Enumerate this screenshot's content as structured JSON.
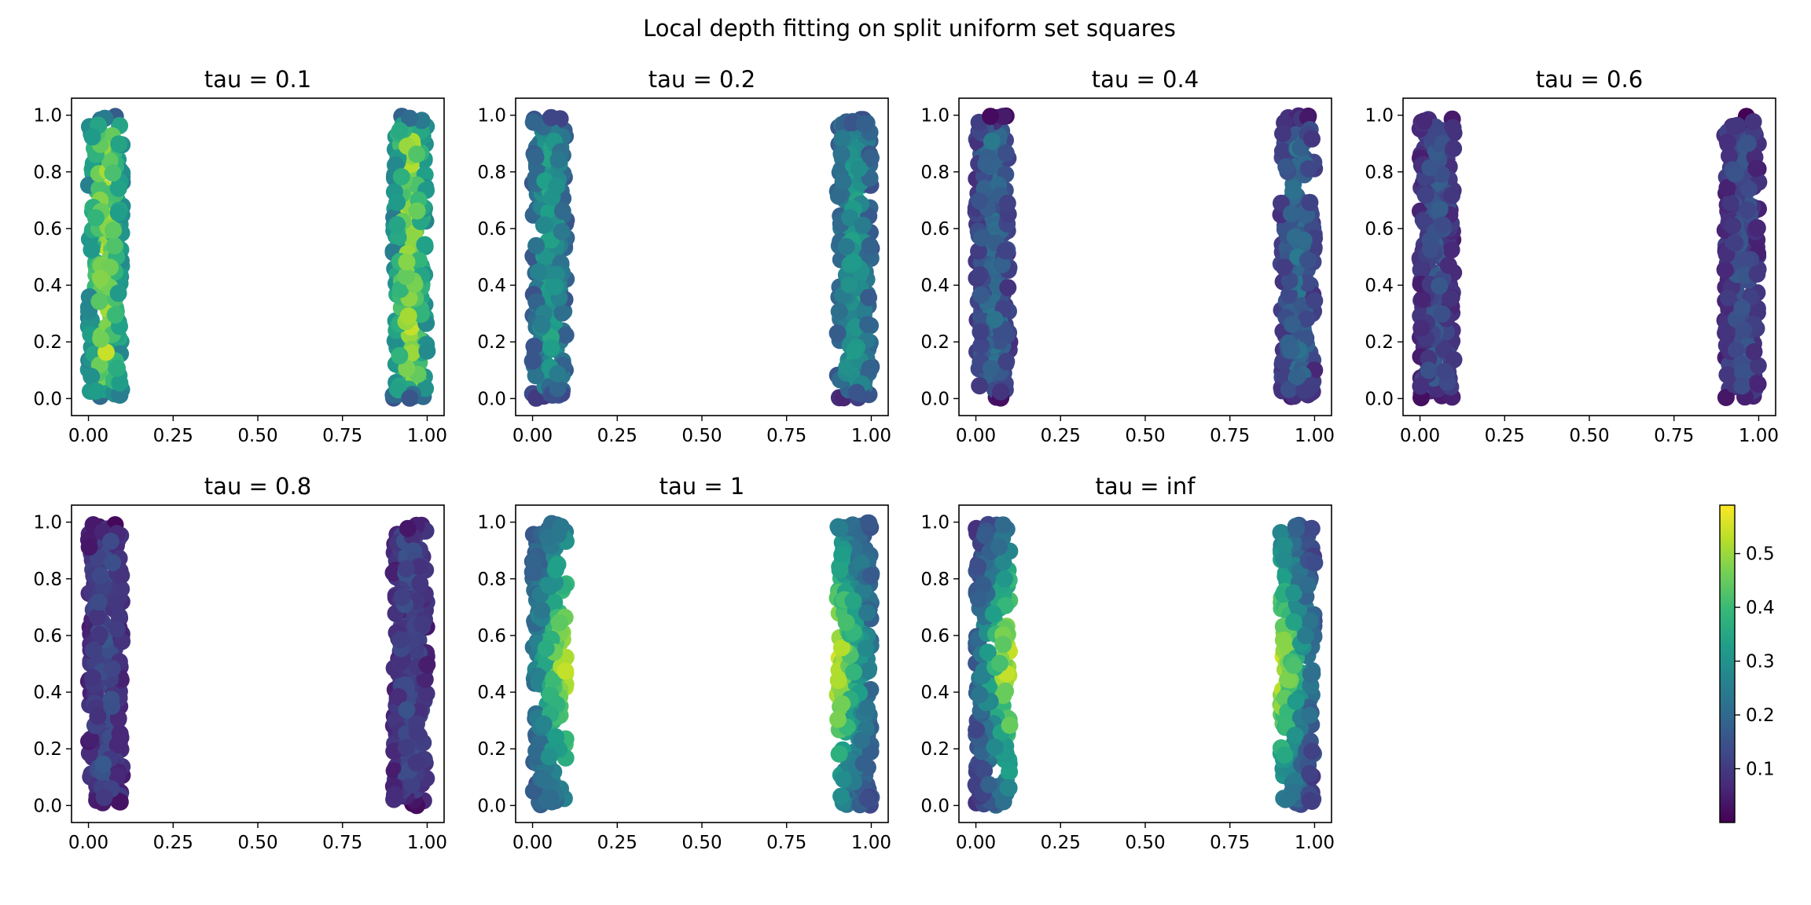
{
  "figure": {
    "title": "Local depth fitting on split uniform set squares"
  },
  "chart_data": [
    {
      "type": "scatter",
      "title": "tau = 0.1",
      "tau": 0.1,
      "xlim": [
        -0.05,
        1.05
      ],
      "ylim": [
        -0.06,
        1.06
      ],
      "xticks": [
        "0.00",
        "0.25",
        "0.50",
        "0.75",
        "1.00"
      ],
      "yticks": [
        "0.0",
        "0.2",
        "0.4",
        "0.6",
        "0.8",
        "1.0"
      ],
      "clusters": [
        {
          "x_range": [
            0.0,
            0.1
          ],
          "y_range": [
            0.0,
            1.0
          ]
        },
        {
          "x_range": [
            0.9,
            1.0
          ],
          "y_range": [
            0.0,
            1.0
          ]
        }
      ],
      "depth_profile": {
        "edge": 0.12,
        "center": 0.57,
        "falloff_width": 0.1
      }
    },
    {
      "type": "scatter",
      "title": "tau = 0.2",
      "tau": 0.2,
      "xlim": [
        -0.05,
        1.05
      ],
      "ylim": [
        -0.06,
        1.06
      ],
      "xticks": [
        "0.00",
        "0.25",
        "0.50",
        "0.75",
        "1.00"
      ],
      "yticks": [
        "0.0",
        "0.2",
        "0.4",
        "0.6",
        "0.8",
        "1.0"
      ],
      "clusters": [
        {
          "x_range": [
            0.0,
            0.1
          ],
          "y_range": [
            0.0,
            1.0
          ]
        },
        {
          "x_range": [
            0.9,
            1.0
          ],
          "y_range": [
            0.0,
            1.0
          ]
        }
      ],
      "depth_profile": {
        "edge": 0.06,
        "center": 0.5,
        "falloff_width": 0.16
      }
    },
    {
      "type": "scatter",
      "title": "tau = 0.4",
      "tau": 0.4,
      "xlim": [
        -0.05,
        1.05
      ],
      "ylim": [
        -0.06,
        1.06
      ],
      "xticks": [
        "0.00",
        "0.25",
        "0.50",
        "0.75",
        "1.00"
      ],
      "yticks": [
        "0.0",
        "0.2",
        "0.4",
        "0.6",
        "0.8",
        "1.0"
      ],
      "clusters": [
        {
          "x_range": [
            0.0,
            0.1
          ],
          "y_range": [
            0.0,
            1.0
          ]
        },
        {
          "x_range": [
            0.9,
            1.0
          ],
          "y_range": [
            0.0,
            1.0
          ]
        }
      ],
      "depth_profile": {
        "edge": 0.02,
        "center": 0.48,
        "falloff_width": 0.28
      }
    },
    {
      "type": "scatter",
      "title": "tau = 0.6",
      "tau": 0.6,
      "xlim": [
        -0.05,
        1.05
      ],
      "ylim": [
        -0.06,
        1.06
      ],
      "xticks": [
        "0.00",
        "0.25",
        "0.50",
        "0.75",
        "1.00"
      ],
      "yticks": [
        "0.0",
        "0.2",
        "0.4",
        "0.6",
        "0.8",
        "1.0"
      ],
      "clusters": [
        {
          "x_range": [
            0.0,
            0.1
          ],
          "y_range": [
            0.0,
            1.0
          ]
        },
        {
          "x_range": [
            0.9,
            1.0
          ],
          "y_range": [
            0.0,
            1.0
          ]
        }
      ],
      "depth_profile": {
        "edge": 0.01,
        "center": 0.47,
        "falloff_width": 0.4
      }
    },
    {
      "type": "scatter",
      "title": "tau = 0.8",
      "tau": 0.8,
      "xlim": [
        -0.05,
        1.05
      ],
      "ylim": [
        -0.06,
        1.06
      ],
      "xticks": [
        "0.00",
        "0.25",
        "0.50",
        "0.75",
        "1.00"
      ],
      "yticks": [
        "0.0",
        "0.2",
        "0.4",
        "0.6",
        "0.8",
        "1.0"
      ],
      "clusters": [
        {
          "x_range": [
            0.0,
            0.1
          ],
          "y_range": [
            0.0,
            1.0
          ]
        },
        {
          "x_range": [
            0.9,
            1.0
          ],
          "y_range": [
            0.0,
            1.0
          ]
        }
      ],
      "depth_profile": {
        "edge": 0.01,
        "center": 0.47,
        "falloff_width": 0.48
      }
    },
    {
      "type": "scatter",
      "title": "tau = 1",
      "tau": 1,
      "xlim": [
        -0.05,
        1.05
      ],
      "ylim": [
        -0.06,
        1.06
      ],
      "xticks": [
        "0.00",
        "0.25",
        "0.50",
        "0.75",
        "1.00"
      ],
      "yticks": [
        "0.0",
        "0.2",
        "0.4",
        "0.6",
        "0.8",
        "1.0"
      ],
      "clusters": [
        {
          "x_range": [
            0.0,
            0.1
          ],
          "y_range": [
            0.0,
            1.0
          ]
        },
        {
          "x_range": [
            0.9,
            1.0
          ],
          "y_range": [
            0.0,
            1.0
          ]
        }
      ],
      "depth_profile": {
        "edge": 0.1,
        "center": 0.55,
        "inner_edge_bias": true
      }
    },
    {
      "type": "scatter",
      "title": "tau = inf",
      "tau": "inf",
      "xlim": [
        -0.05,
        1.05
      ],
      "ylim": [
        -0.06,
        1.06
      ],
      "xticks": [
        "0.00",
        "0.25",
        "0.50",
        "0.75",
        "1.00"
      ],
      "yticks": [
        "0.0",
        "0.2",
        "0.4",
        "0.6",
        "0.8",
        "1.0"
      ],
      "clusters": [
        {
          "x_range": [
            0.0,
            0.1
          ],
          "y_range": [
            0.0,
            1.0
          ]
        },
        {
          "x_range": [
            0.9,
            1.0
          ],
          "y_range": [
            0.0,
            1.0
          ]
        }
      ],
      "depth_profile": {
        "edge": 0.05,
        "center": 0.55,
        "inner_edge_bias": true
      }
    }
  ],
  "colorbar": {
    "cmap": "viridis",
    "range": [
      0.0,
      0.59
    ],
    "ticks": [
      "0.1",
      "0.2",
      "0.3",
      "0.4",
      "0.5"
    ],
    "colors": [
      "#440154",
      "#482878",
      "#3e4989",
      "#31688e",
      "#26828e",
      "#1f9e89",
      "#35b779",
      "#6ece58",
      "#b5de2b",
      "#fde725"
    ]
  }
}
